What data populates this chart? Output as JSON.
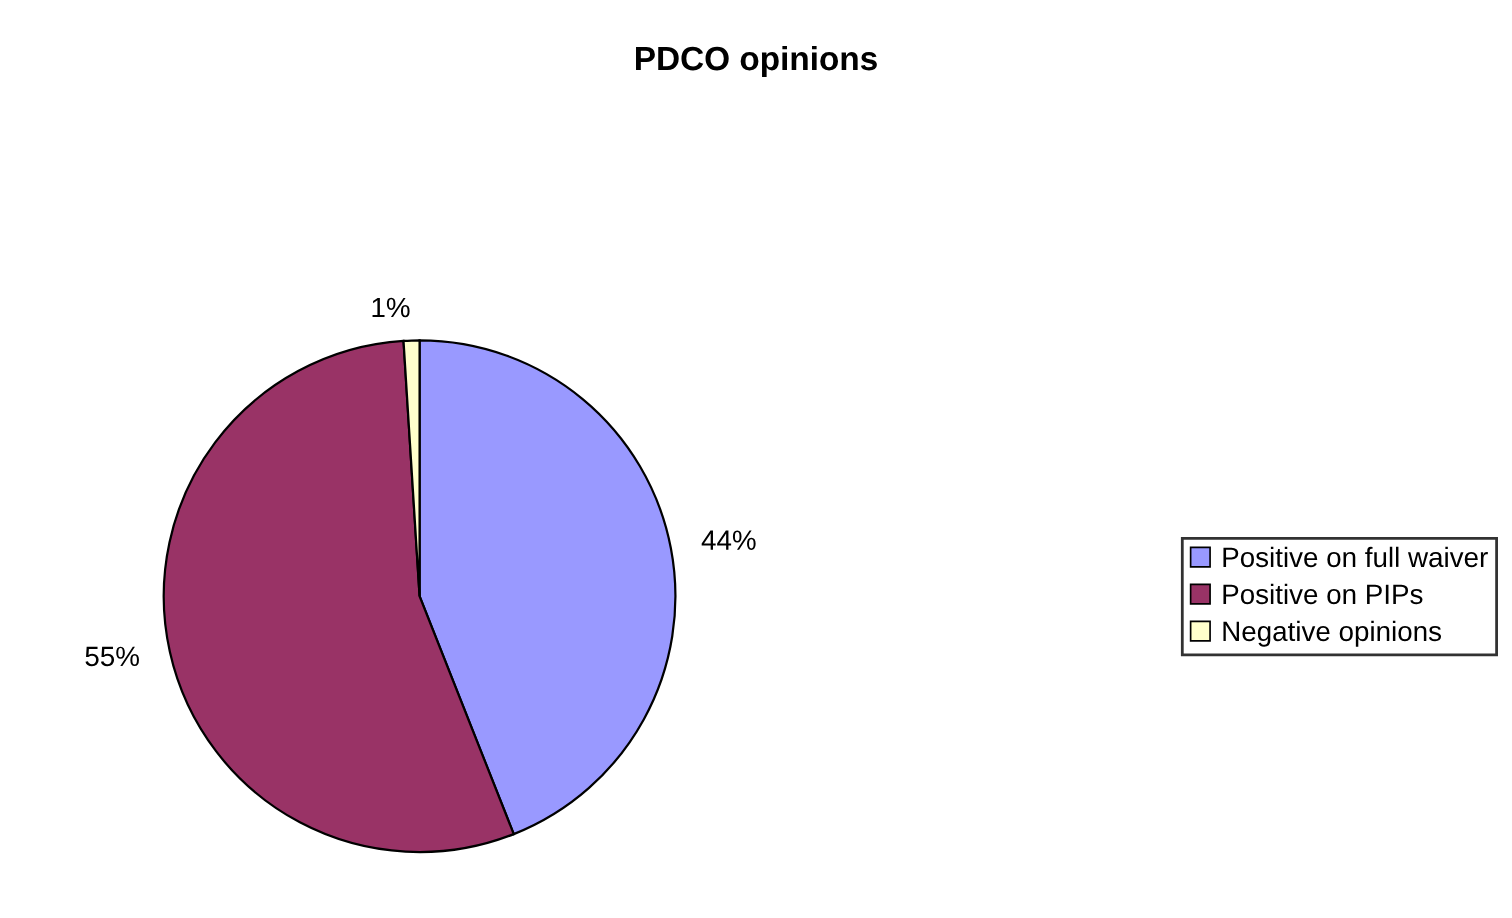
{
  "chart_data": {
    "type": "pie",
    "title": "PDCO opinions",
    "categories": [
      "Positive on full waiver",
      "Positive on PIPs",
      "Negative opinions"
    ],
    "values": [
      44,
      55,
      1
    ],
    "colors": [
      "#9999ff",
      "#993366",
      "#ffffcc"
    ],
    "value_labels": [
      "44%",
      "55%",
      "1%"
    ],
    "legend": "right"
  }
}
